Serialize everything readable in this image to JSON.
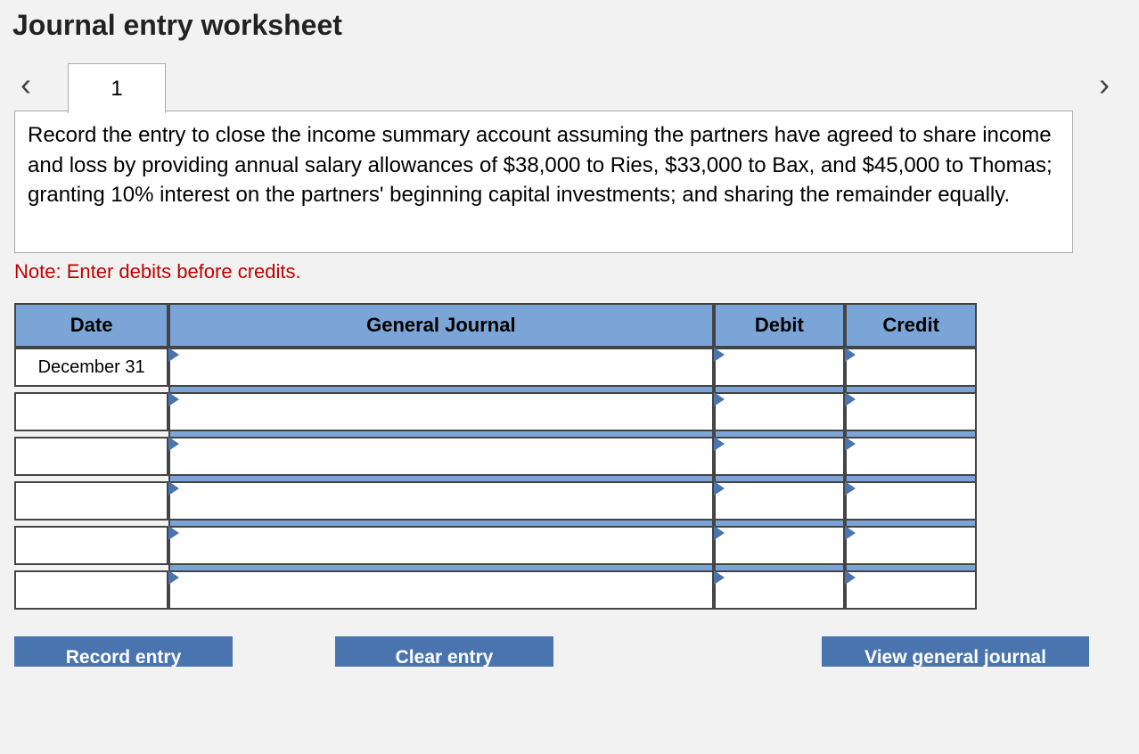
{
  "title": "Journal entry worksheet",
  "tab": {
    "label": "1"
  },
  "instruction": "Record the entry to close the income summary account assuming the partners have agreed to share income and loss by providing annual salary allowances of $38,000 to Ries, $33,000 to Bax, and $45,000 to Thomas; granting 10% interest on the partners' beginning capital investments; and sharing the remainder equally.",
  "note": "Note: Enter debits before credits.",
  "columns": {
    "date": "Date",
    "general_journal": "General Journal",
    "debit": "Debit",
    "credit": "Credit"
  },
  "rows": [
    {
      "date": "December 31",
      "gj": "",
      "debit": "",
      "credit": ""
    },
    {
      "date": "",
      "gj": "",
      "debit": "",
      "credit": ""
    },
    {
      "date": "",
      "gj": "",
      "debit": "",
      "credit": ""
    },
    {
      "date": "",
      "gj": "",
      "debit": "",
      "credit": ""
    },
    {
      "date": "",
      "gj": "",
      "debit": "",
      "credit": ""
    },
    {
      "date": "",
      "gj": "",
      "debit": "",
      "credit": ""
    }
  ],
  "buttons": {
    "record": "Record entry",
    "clear": "Clear entry",
    "view": "View general journal"
  },
  "colors": {
    "header_bg": "#7ba5d6",
    "button_bg": "#4a74ae",
    "note_color": "#c00000",
    "page_bg": "#f2f2f2",
    "border": "#444444"
  }
}
